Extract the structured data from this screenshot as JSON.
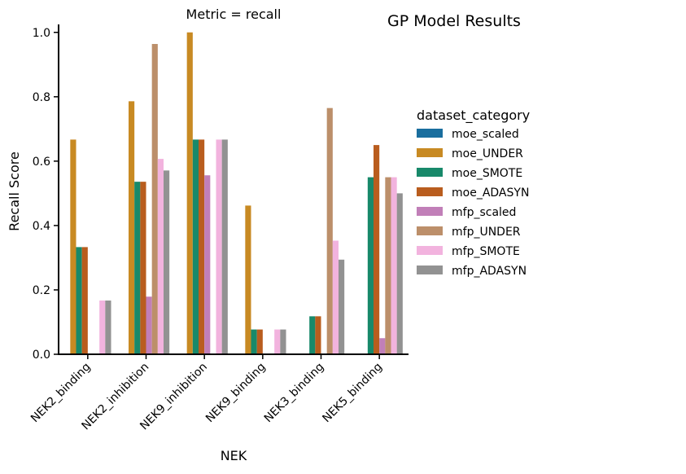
{
  "suptitle": "GP Model Results",
  "chart_data": {
    "type": "bar",
    "title": "Metric = recall",
    "xlabel": "NEK",
    "ylabel": "Recall Score",
    "ylim": [
      0,
      1.05
    ],
    "yticks": [
      "0.0",
      "0.2",
      "0.4",
      "0.6",
      "0.8",
      "1.0"
    ],
    "categories": [
      "NEK2_binding",
      "NEK2_inhibition",
      "NEK9_inhibition",
      "NEK9_binding",
      "NEK3_binding",
      "NEK5_binding"
    ],
    "grid": false,
    "legend": {
      "title": "dataset_category",
      "placement": "right"
    },
    "series": [
      {
        "name": "moe_scaled",
        "color": "#1a6e9e",
        "values": [
          0,
          0,
          0,
          0,
          0,
          0
        ]
      },
      {
        "name": "moe_UNDER",
        "color": "#c88a23",
        "values": [
          0.667,
          0.786,
          1.0,
          0.462,
          0,
          0
        ]
      },
      {
        "name": "moe_SMOTE",
        "color": "#18896a",
        "values": [
          0.333,
          0.536,
          0.667,
          0.077,
          0.118,
          0.55
        ]
      },
      {
        "name": "moe_ADASYN",
        "color": "#b95d1e",
        "values": [
          0.333,
          0.536,
          0.667,
          0.077,
          0.118,
          0.65
        ]
      },
      {
        "name": "mfp_scaled",
        "color": "#c17fb8",
        "values": [
          0,
          0.179,
          0.556,
          0,
          0,
          0.05
        ]
      },
      {
        "name": "mfp_UNDER",
        "color": "#bc8f6a",
        "values": [
          0,
          0.964,
          0,
          0,
          0.765,
          0.55
        ]
      },
      {
        "name": "mfp_SMOTE",
        "color": "#f2b3de",
        "values": [
          0.167,
          0.607,
          0.667,
          0.077,
          0.353,
          0.55
        ]
      },
      {
        "name": "mfp_ADASYN",
        "color": "#929292",
        "values": [
          0.167,
          0.571,
          0.667,
          0.077,
          0.294,
          0.5
        ]
      }
    ]
  }
}
